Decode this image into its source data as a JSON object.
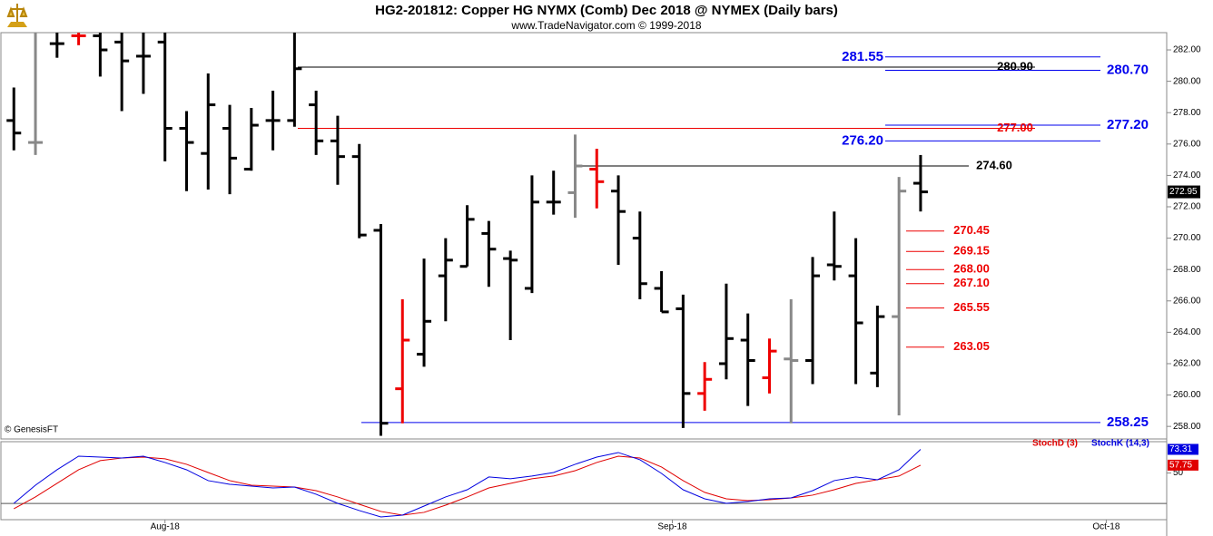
{
  "chart_data": [
    {
      "type": "ohlc",
      "title": "HG2-201812:  Copper HG NYMX (Comb) Dec 2018 @ NYMEX  (Daily bars)",
      "subtitle": "www.TradeNavigator.com © 1999-2018",
      "watermark": "© GenesisFT",
      "xlim": [
        -0.6,
        53.4
      ],
      "ylim": [
        257.2,
        283.1
      ],
      "yticks": [
        {
          "value": 258,
          "label": "258.00"
        },
        {
          "value": 260,
          "label": "260.00"
        },
        {
          "value": 262,
          "label": "262.00"
        },
        {
          "value": 264,
          "label": "264.00"
        },
        {
          "value": 266,
          "label": "266.00"
        },
        {
          "value": 268,
          "label": "268.00"
        },
        {
          "value": 270,
          "label": "270.00"
        },
        {
          "value": 272,
          "label": "272.00"
        },
        {
          "value": 274,
          "label": "274.00"
        },
        {
          "value": 276,
          "label": "276.00"
        },
        {
          "value": 278,
          "label": "278.00"
        },
        {
          "value": 280,
          "label": "280.00"
        },
        {
          "value": 282,
          "label": "282.00"
        }
      ],
      "open": [
        277.5,
        276.1,
        282.4,
        282.9,
        282.9,
        282.5,
        281.6,
        282.5,
        277.0,
        275.4,
        277.0,
        274.4,
        277.5,
        277.5,
        278.5,
        276.2,
        275.2,
        270.5,
        260.4,
        262.6,
        267.6,
        268.2,
        270.3,
        268.7,
        266.8,
        272.3,
        272.9,
        274.4,
        273.0,
        270.0,
        266.8,
        265.5,
        260.1,
        262.0,
        263.5,
        261.1,
        262.3,
        262.2,
        268.3,
        267.6,
        261.4,
        265.0,
        273.5
      ],
      "high": [
        279.6,
        283.1,
        283.1,
        283.1,
        283.1,
        283.1,
        283.1,
        283.1,
        278.1,
        280.5,
        278.5,
        278.3,
        279.4,
        283.1,
        279.4,
        277.8,
        276.0,
        270.9,
        266.1,
        268.7,
        270.0,
        272.1,
        271.1,
        269.2,
        274.0,
        274.3,
        276.6,
        275.7,
        274.0,
        271.7,
        267.9,
        266.4,
        262.1,
        267.1,
        265.2,
        263.6,
        266.1,
        268.8,
        271.7,
        270.0,
        265.7,
        273.9,
        275.3
      ],
      "low": [
        275.6,
        275.3,
        281.5,
        282.3,
        280.3,
        278.1,
        279.2,
        274.9,
        273.0,
        273.1,
        272.8,
        274.3,
        275.6,
        277.1,
        275.3,
        273.4,
        270.0,
        257.4,
        258.2,
        261.8,
        264.7,
        268.2,
        266.9,
        263.5,
        266.5,
        271.5,
        271.3,
        271.9,
        268.3,
        266.1,
        265.3,
        257.9,
        259.0,
        261.0,
        259.3,
        260.1,
        258.2,
        260.7,
        267.3,
        260.7,
        260.5,
        258.7,
        271.7
      ],
      "close": [
        276.7,
        276.1,
        282.4,
        282.9,
        282.0,
        281.3,
        281.6,
        277.0,
        276.1,
        278.5,
        275.1,
        277.2,
        277.5,
        280.8,
        276.2,
        275.2,
        270.2,
        258.2,
        263.5,
        264.7,
        268.6,
        271.2,
        269.3,
        268.6,
        272.3,
        272.3,
        274.6,
        273.6,
        271.7,
        267.1,
        265.3,
        260.1,
        261.0,
        263.6,
        262.2,
        262.8,
        262.2,
        267.6,
        268.2,
        264.6,
        265.0,
        273.0,
        272.95
      ],
      "last_label": "272.95",
      "colors": [
        "#000",
        "#888",
        "#000",
        "#e00",
        "#000",
        "#000",
        "#000",
        "#000",
        "#000",
        "#000",
        "#000",
        "#000",
        "#000",
        "#000",
        "#000",
        "#000",
        "#000",
        "#000",
        "#e00",
        "#000",
        "#000",
        "#000",
        "#000",
        "#000",
        "#000",
        "#000",
        "#888",
        "#e00",
        "#000",
        "#000",
        "#000",
        "#000",
        "#e00",
        "#000",
        "#000",
        "#e00",
        "#888",
        "#000",
        "#000",
        "#000",
        "#000",
        "#888",
        "#000"
      ],
      "levels": [
        {
          "value": 281.55,
          "label": "281.55",
          "color": "#0000ee"
        },
        {
          "value": 280.9,
          "label": "280.90",
          "color": "#000000"
        },
        {
          "value": 280.7,
          "label": "280.70",
          "color": "#0000ee"
        },
        {
          "value": 277.2,
          "label": "277.20",
          "color": "#0000ee"
        },
        {
          "value": 277.0,
          "label": "277.00",
          "color": "#ee0000"
        },
        {
          "value": 276.2,
          "label": "276.20",
          "color": "#0000ee"
        },
        {
          "value": 274.6,
          "label": "274.60",
          "color": "#000000"
        },
        {
          "value": 270.45,
          "label": "270.45",
          "color": "#ee0000"
        },
        {
          "value": 269.15,
          "label": "269.15",
          "color": "#ee0000"
        },
        {
          "value": 268.0,
          "label": "268.00",
          "color": "#ee0000"
        },
        {
          "value": 267.1,
          "label": "267.10",
          "color": "#ee0000"
        },
        {
          "value": 265.55,
          "label": "265.55",
          "color": "#ee0000"
        },
        {
          "value": 263.05,
          "label": "263.05",
          "color": "#ee0000"
        },
        {
          "value": 258.25,
          "label": "258.25",
          "color": "#0000ee"
        }
      ]
    },
    {
      "type": "line",
      "xlim": [
        -0.6,
        53.4
      ],
      "ylim": [
        4,
        80
      ],
      "yticks": [
        50
      ],
      "levels": [
        20
      ],
      "xticks": [
        {
          "value": 7,
          "label": "Aug-18"
        },
        {
          "value": 30.5,
          "label": "Sep-18"
        },
        {
          "value": 50.6,
          "label": "Oct-18"
        }
      ],
      "series": [
        {
          "name": "StochD (3)",
          "color": "#e00000",
          "values": [
            14.8,
            26.4,
            39.8,
            53.2,
            62.2,
            64.8,
            65.7,
            64.0,
            58.6,
            50.5,
            42.5,
            38.0,
            37.1,
            36.2,
            32.6,
            26.4,
            19.2,
            12.1,
            8.5,
            11.2,
            18.3,
            26.4,
            35.3,
            39.8,
            44.3,
            47.0,
            52.3,
            60.4,
            66.6,
            64.8,
            55.9,
            42.5,
            30.9,
            24.6,
            22.8,
            23.7,
            25.5,
            28.2,
            33.5,
            39.8,
            43.4,
            47.0,
            57.75
          ]
        },
        {
          "name": "StochK (14,3)",
          "color": "#0000e0",
          "values": [
            20.1,
            38.0,
            53.2,
            66.6,
            65.7,
            64.8,
            66.6,
            60.4,
            53.2,
            42.5,
            38.9,
            37.1,
            35.3,
            36.2,
            29.1,
            20.1,
            13.0,
            6.7,
            8.5,
            17.4,
            26.4,
            33.5,
            46.1,
            44.3,
            47.0,
            50.5,
            58.6,
            65.7,
            70.2,
            63.1,
            49.6,
            33.5,
            24.6,
            20.1,
            21.9,
            24.6,
            25.5,
            32.6,
            42.5,
            46.1,
            43.4,
            53.2,
            73.31
          ]
        }
      ]
    }
  ]
}
